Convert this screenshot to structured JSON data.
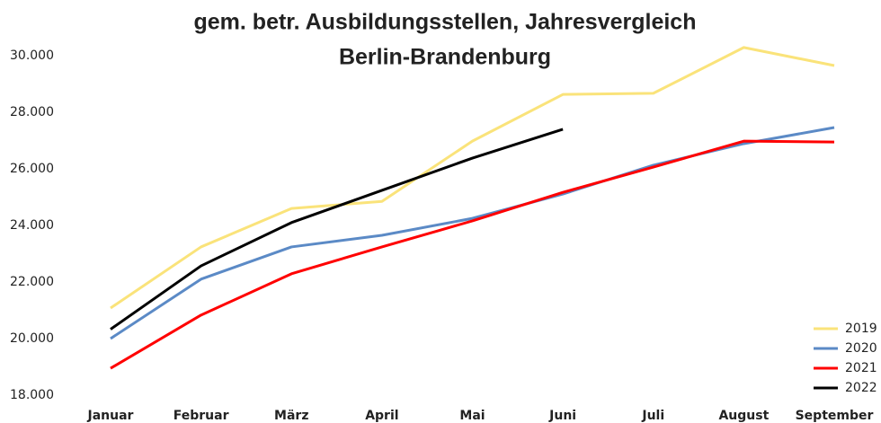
{
  "chart_data": {
    "type": "line",
    "title": "gem. betr. Ausbildungsstellen, Jahresvergleich",
    "subtitle": "Berlin-Brandenburg",
    "categories": [
      "Januar",
      "Februar",
      "März",
      "April",
      "Mai",
      "Juni",
      "Juli",
      "August",
      "September"
    ],
    "series": [
      {
        "name": "2019",
        "color": "#fae37a",
        "values": [
          21080,
          23240,
          24600,
          24850,
          26980,
          28630,
          28670,
          30290,
          29650
        ]
      },
      {
        "name": "2020",
        "color": "#5b8ac6",
        "values": [
          20000,
          22100,
          23240,
          23650,
          24250,
          25110,
          26130,
          26890,
          27460
        ]
      },
      {
        "name": "2021",
        "color": "#ff0000",
        "values": [
          18950,
          20830,
          22290,
          23240,
          24160,
          25170,
          26060,
          26980,
          26950
        ]
      },
      {
        "name": "2022",
        "color": "#000000",
        "values": [
          20330,
          22570,
          24100,
          25240,
          26380,
          27400,
          null,
          null,
          null
        ]
      }
    ],
    "ylim": [
      18000,
      31000
    ],
    "yticks": [
      {
        "value": 18000,
        "label": "18.000"
      },
      {
        "value": 20000,
        "label": "20.000"
      },
      {
        "value": 22000,
        "label": "22.000"
      },
      {
        "value": 24000,
        "label": "24.000"
      },
      {
        "value": 26000,
        "label": "26.000"
      },
      {
        "value": 28000,
        "label": "28.000"
      },
      {
        "value": 30000,
        "label": "30.000"
      }
    ],
    "grid": false,
    "legend": "lower right"
  }
}
